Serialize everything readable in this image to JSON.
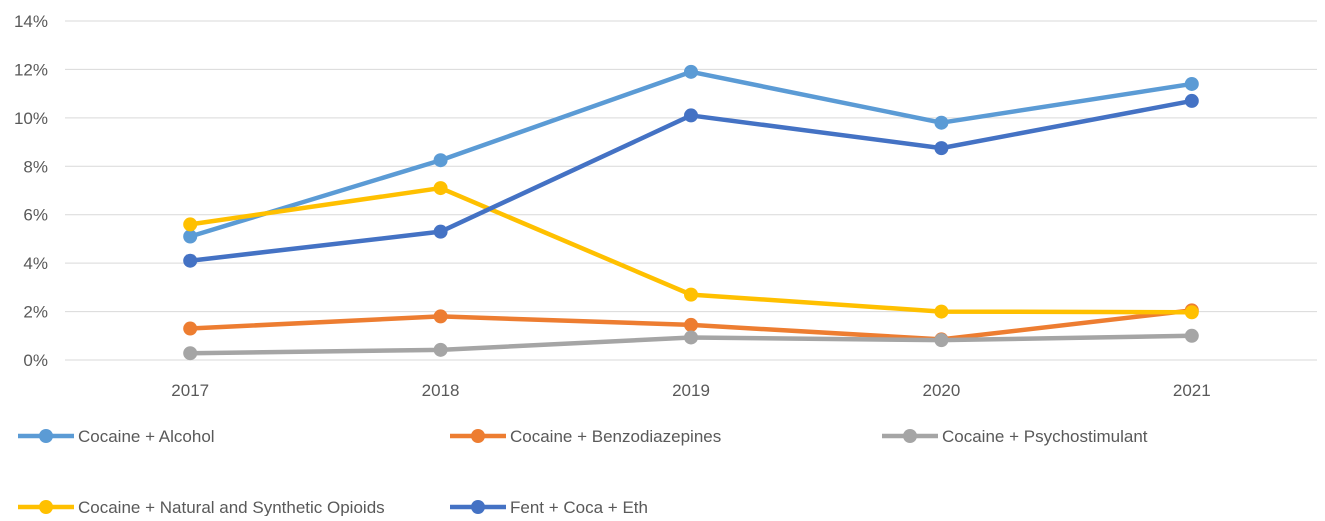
{
  "chart_data": {
    "type": "line",
    "title": "",
    "xlabel": "",
    "ylabel": "",
    "categories": [
      "2017",
      "2018",
      "2019",
      "2020",
      "2021"
    ],
    "ylim": [
      0,
      14
    ],
    "yticks": [
      0,
      2,
      4,
      6,
      8,
      10,
      12,
      14
    ],
    "ytick_labels": [
      "0%",
      "2%",
      "4%",
      "6%",
      "8%",
      "10%",
      "12%",
      "14%"
    ],
    "grid": true,
    "legend_position": "bottom",
    "series": [
      {
        "name": "Cocaine + Alcohol",
        "color": "#5B9BD5",
        "values": [
          5.1,
          8.25,
          11.9,
          9.8,
          11.4
        ]
      },
      {
        "name": "Cocaine + Benzodiazepines",
        "color": "#ED7D31",
        "values": [
          1.3,
          1.8,
          1.45,
          0.85,
          2.05
        ]
      },
      {
        "name": "Cocaine + Psychostimulant",
        "color": "#A5A5A5",
        "values": [
          0.28,
          0.42,
          0.93,
          0.82,
          1.0
        ]
      },
      {
        "name": "Cocaine + Natural and Synthetic Opioids",
        "color": "#FFC000",
        "values": [
          5.6,
          7.1,
          2.7,
          2.0,
          1.97
        ]
      },
      {
        "name": "Fent + Coca + Eth",
        "color": "#4472C4",
        "values": [
          4.1,
          5.3,
          10.1,
          8.75,
          10.7
        ]
      }
    ]
  }
}
